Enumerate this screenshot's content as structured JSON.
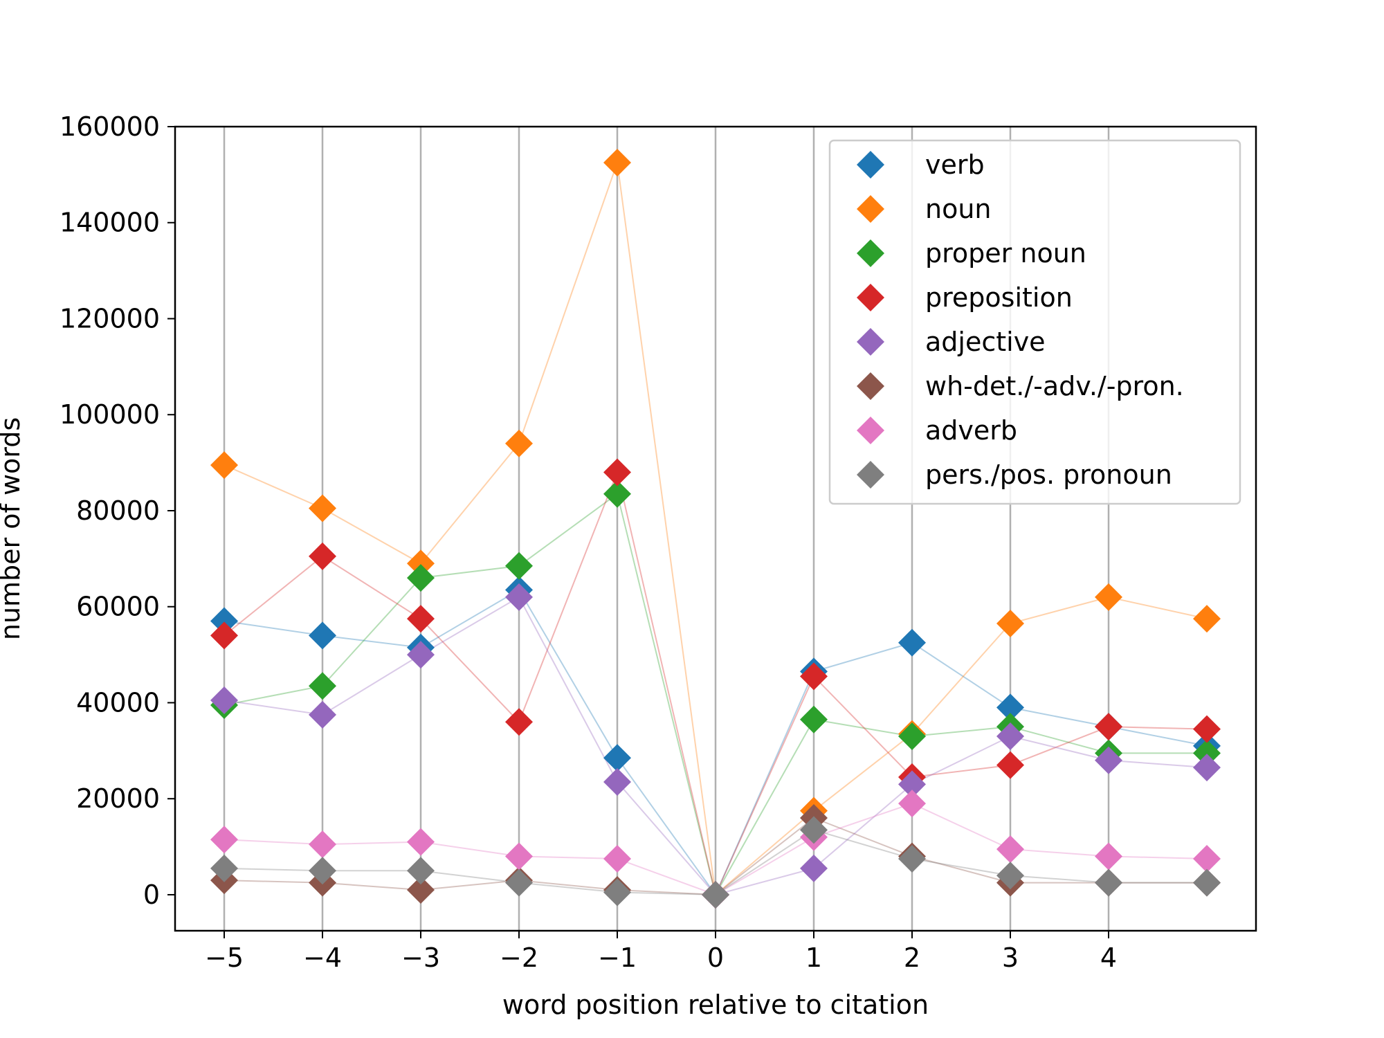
{
  "chart_data": {
    "type": "scatter",
    "xlabel": "word position relative to citation",
    "ylabel": "number of words",
    "xlim": [
      -5.5,
      5.5
    ],
    "ylim": [
      -7500,
      160000
    ],
    "x_ticks": [
      -5,
      -4,
      -3,
      -2,
      -1,
      0,
      1,
      2,
      3,
      4
    ],
    "x_tick_labels": [
      "−5",
      "−4",
      "−3",
      "−2",
      "−1",
      "0",
      "1",
      "2",
      "3",
      "4"
    ],
    "y_ticks": [
      0,
      20000,
      40000,
      60000,
      80000,
      100000,
      120000,
      140000,
      160000
    ],
    "y_tick_labels": [
      "0",
      "20000",
      "40000",
      "60000",
      "80000",
      "100000",
      "120000",
      "140000",
      "160000"
    ],
    "grid": "vertical",
    "legend_position": "top-right",
    "x": [
      -5,
      -4,
      -3,
      -2,
      -1,
      0,
      1,
      2,
      3,
      4,
      5
    ],
    "series": [
      {
        "name": "verb",
        "color": "#1f77b4",
        "values": [
          57000,
          54000,
          51500,
          63500,
          28500,
          0,
          46500,
          52500,
          39000,
          35000,
          31000
        ]
      },
      {
        "name": "noun",
        "color": "#ff7f0e",
        "values": [
          89500,
          80500,
          69000,
          94000,
          152500,
          0,
          17500,
          33500,
          56500,
          62000,
          57500
        ]
      },
      {
        "name": "proper noun",
        "color": "#2ca02c",
        "values": [
          39500,
          43500,
          66000,
          68500,
          83500,
          0,
          36500,
          33000,
          35000,
          29500,
          29500
        ]
      },
      {
        "name": "preposition",
        "color": "#d62728",
        "values": [
          54000,
          70500,
          57500,
          36000,
          88000,
          0,
          45500,
          24500,
          27000,
          35000,
          34500
        ]
      },
      {
        "name": "adjective",
        "color": "#9467bd",
        "values": [
          40500,
          37500,
          50000,
          62000,
          23500,
          0,
          5500,
          23000,
          33000,
          28000,
          26500
        ]
      },
      {
        "name": "wh-det./-adv./-pron.",
        "color": "#8c564b",
        "values": [
          3000,
          2500,
          1000,
          3000,
          1000,
          0,
          16000,
          8000,
          2500,
          2500,
          2500
        ]
      },
      {
        "name": "adverb",
        "color": "#e377c2",
        "values": [
          11500,
          10500,
          11000,
          8000,
          7500,
          0,
          12000,
          19000,
          9500,
          8000,
          7500
        ]
      },
      {
        "name": "pers./pos. pronoun",
        "color": "#7f7f7f",
        "values": [
          5500,
          5000,
          5000,
          2500,
          500,
          0,
          13500,
          7500,
          4000,
          2500,
          2500
        ]
      }
    ]
  }
}
